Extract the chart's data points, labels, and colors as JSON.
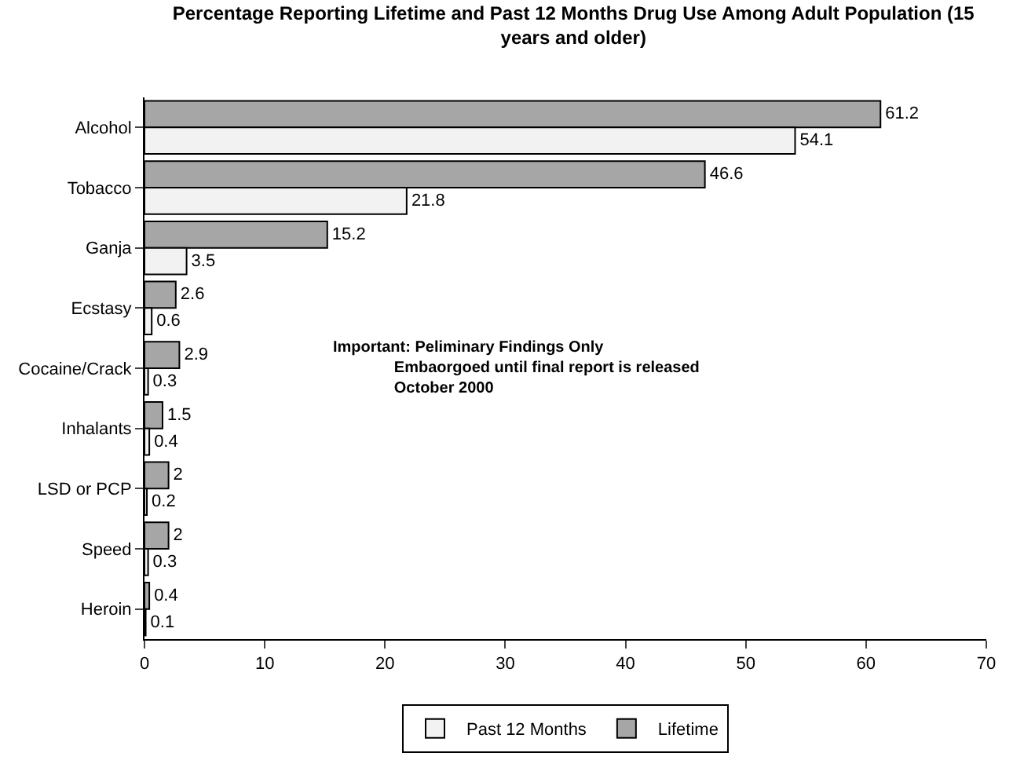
{
  "chart_data": {
    "type": "bar",
    "orientation": "horizontal",
    "title": "Percentage Reporting Lifetime and Past 12 Months Drug Use Among Adult Population (15 years and older)",
    "categories": [
      "Alcohol",
      "Tobacco",
      "Ganja",
      "Ecstasy",
      "Cocaine/Crack",
      "Inhalants",
      "LSD or PCP",
      "Speed",
      "Heroin"
    ],
    "series": [
      {
        "name": "Lifetime",
        "color": "#a6a6a6",
        "values": [
          61.2,
          46.6,
          15.2,
          2.6,
          2.9,
          1.5,
          2,
          2,
          0.4
        ]
      },
      {
        "name": "Past 12 Months",
        "color": "#f2f2f2",
        "values": [
          54.1,
          21.8,
          3.5,
          0.6,
          0.3,
          0.4,
          0.2,
          0.3,
          0.1
        ]
      }
    ],
    "xlim": [
      0,
      70
    ],
    "xticks": [
      0,
      10,
      20,
      30,
      40,
      50,
      60,
      70
    ],
    "data_labels": true,
    "legend": "bottom",
    "annotations": [
      "Important: Peliminary Findings Only\n              Embaorgoed until final report is released\n              October 2000"
    ]
  }
}
